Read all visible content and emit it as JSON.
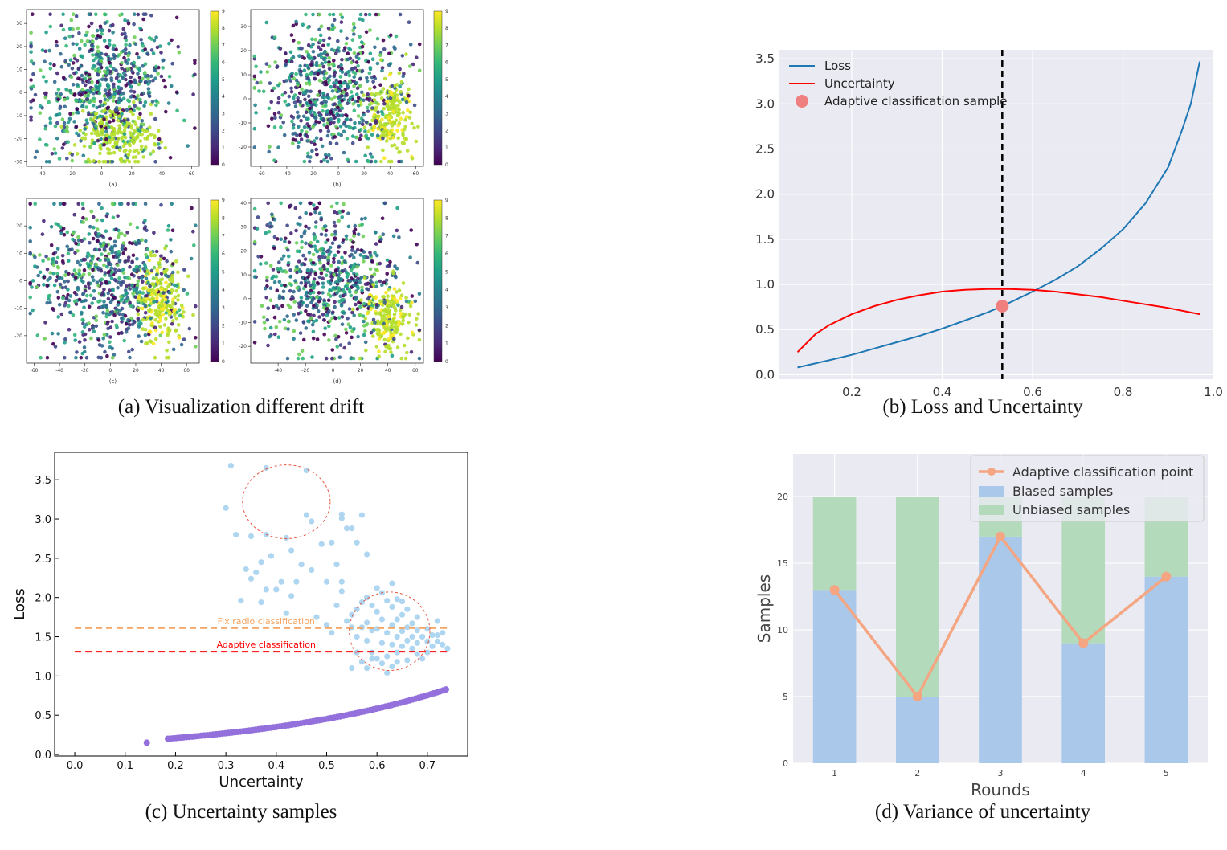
{
  "captions": {
    "a": "(a) Visualization different drift",
    "b": "(b) Loss and Uncertainty",
    "c": "(c) Uncertainty samples",
    "d": "(d) Variance of uncertainty"
  },
  "chart_data": [
    {
      "id": "a",
      "type": "scatter",
      "title": "(a) Visualization different drift",
      "subplots": [
        {
          "label": "(a)",
          "xticks": [
            -40,
            -20,
            0,
            20,
            40,
            60
          ],
          "yticks": [
            -30,
            -20,
            -10,
            0,
            10,
            20,
            30
          ],
          "xlim": [
            -50,
            65
          ],
          "ylim": [
            -32,
            36
          ]
        },
        {
          "label": "(b)",
          "xticks": [
            -60,
            -40,
            -20,
            0,
            20,
            40,
            60
          ],
          "yticks": [
            -20,
            -10,
            0,
            10,
            20,
            30
          ],
          "xlim": [
            -68,
            66
          ],
          "ylim": [
            -28,
            37
          ]
        },
        {
          "label": "(c)",
          "xticks": [
            -60,
            -40,
            -20,
            0,
            20,
            40,
            60
          ],
          "yticks": [
            -20,
            -10,
            0,
            10,
            20
          ],
          "xlim": [
            -66,
            70
          ],
          "ylim": [
            -30,
            30
          ]
        },
        {
          "label": "(d)",
          "xticks": [
            -40,
            -20,
            0,
            20,
            40,
            60
          ],
          "yticks": [
            -20,
            -10,
            0,
            10,
            20,
            30,
            40
          ],
          "xlim": [
            -60,
            66
          ],
          "ylim": [
            -27,
            42
          ]
        }
      ],
      "colorbar_ticks": [
        "0",
        "1",
        "2",
        "3",
        "4",
        "5",
        "6",
        "7",
        "8",
        "9"
      ]
    },
    {
      "id": "b",
      "type": "line",
      "title": "(b) Loss and Uncertainty",
      "xlim": [
        0.04,
        1.0
      ],
      "ylim": [
        -0.05,
        3.6
      ],
      "xticks": [
        "0.2",
        "0.4",
        "0.6",
        "0.8",
        "1.0"
      ],
      "yticks": [
        "0.0",
        "0.5",
        "1.0",
        "1.5",
        "2.0",
        "2.5",
        "3.0",
        "3.5"
      ],
      "series": [
        {
          "name": "Loss",
          "color": "#1f77b4",
          "x": [
            0.08,
            0.15,
            0.2,
            0.25,
            0.3,
            0.35,
            0.4,
            0.45,
            0.5,
            0.533,
            0.55,
            0.6,
            0.65,
            0.7,
            0.75,
            0.8,
            0.85,
            0.9,
            0.93,
            0.95,
            0.97
          ],
          "y": [
            0.08,
            0.16,
            0.22,
            0.29,
            0.36,
            0.43,
            0.51,
            0.6,
            0.69,
            0.76,
            0.8,
            0.92,
            1.05,
            1.2,
            1.39,
            1.61,
            1.9,
            2.3,
            2.7,
            3.0,
            3.47
          ]
        },
        {
          "name": "Uncertainty",
          "color": "#ff0000",
          "x": [
            0.08,
            0.12,
            0.15,
            0.2,
            0.25,
            0.3,
            0.35,
            0.4,
            0.45,
            0.5,
            0.55,
            0.6,
            0.65,
            0.7,
            0.75,
            0.8,
            0.85,
            0.9,
            0.97
          ],
          "y": [
            0.25,
            0.45,
            0.55,
            0.67,
            0.76,
            0.83,
            0.88,
            0.92,
            0.94,
            0.95,
            0.95,
            0.94,
            0.92,
            0.89,
            0.86,
            0.82,
            0.78,
            0.74,
            0.67
          ]
        }
      ],
      "marker": {
        "name": "Adaptive classification sample",
        "x": 0.533,
        "y": 0.76,
        "color": "#f08080"
      },
      "vline": {
        "x": 0.533,
        "style": "dashed",
        "color": "#000000"
      }
    },
    {
      "id": "c",
      "type": "scatter",
      "title": "(c) Uncertainty samples",
      "xlabel": "Uncertainty",
      "ylabel": "Loss",
      "xlim": [
        -0.04,
        0.78
      ],
      "ylim": [
        -0.02,
        3.85
      ],
      "xticks": [
        "0.0",
        "0.1",
        "0.2",
        "0.3",
        "0.4",
        "0.5",
        "0.6",
        "0.7"
      ],
      "yticks": [
        "0.0",
        "0.5",
        "1.0",
        "1.5",
        "2.0",
        "2.5",
        "3.0",
        "3.5"
      ],
      "hlines": [
        {
          "label": "Fix radio classification",
          "y": 1.61,
          "color": "#f4a460"
        },
        {
          "label": "Adaptive classification",
          "y": 1.31,
          "color": "#ff0000"
        }
      ],
      "curve_points_color": "#9370db",
      "scatter_color": "#aed6f1",
      "circles": [
        {
          "cx": 0.42,
          "cy": 3.22,
          "rx": 0.087,
          "ry": 0.47
        },
        {
          "cx": 0.625,
          "cy": 1.57,
          "rx": 0.08,
          "ry": 0.5
        }
      ],
      "scatter_points": [
        [
          0.31,
          3.68
        ],
        [
          0.3,
          3.14
        ],
        [
          0.32,
          2.8
        ],
        [
          0.35,
          2.78
        ],
        [
          0.38,
          3.65
        ],
        [
          0.38,
          2.8
        ],
        [
          0.42,
          2.76
        ],
        [
          0.46,
          3.62
        ],
        [
          0.46,
          3.05
        ],
        [
          0.47,
          2.97
        ],
        [
          0.53,
          3.06
        ],
        [
          0.53,
          3.01
        ],
        [
          0.54,
          2.88
        ],
        [
          0.55,
          2.88
        ],
        [
          0.57,
          3.05
        ],
        [
          0.58,
          2.55
        ],
        [
          0.56,
          2.7
        ],
        [
          0.34,
          2.36
        ],
        [
          0.35,
          2.24
        ],
        [
          0.38,
          2.1
        ],
        [
          0.37,
          2.45
        ],
        [
          0.39,
          2.53
        ],
        [
          0.41,
          2.2
        ],
        [
          0.4,
          2.1
        ],
        [
          0.43,
          2.6
        ],
        [
          0.44,
          2.2
        ],
        [
          0.45,
          2.42
        ],
        [
          0.47,
          2.35
        ],
        [
          0.49,
          2.68
        ],
        [
          0.5,
          2.2
        ],
        [
          0.51,
          2.7
        ],
        [
          0.52,
          2.42
        ],
        [
          0.53,
          2.2
        ],
        [
          0.33,
          1.96
        ],
        [
          0.36,
          2.32
        ],
        [
          0.37,
          1.94
        ],
        [
          0.42,
          1.8
        ],
        [
          0.43,
          2.02
        ],
        [
          0.48,
          1.75
        ],
        [
          0.5,
          1.65
        ],
        [
          0.51,
          1.55
        ],
        [
          0.52,
          1.9
        ],
        [
          0.53,
          2.08
        ],
        [
          0.54,
          1.7
        ],
        [
          0.55,
          1.78
        ],
        [
          0.56,
          1.5
        ],
        [
          0.56,
          1.3
        ],
        [
          0.57,
          1.62
        ],
        [
          0.57,
          1.94
        ],
        [
          0.58,
          1.68
        ],
        [
          0.58,
          1.45
        ],
        [
          0.59,
          1.9
        ],
        [
          0.59,
          1.3
        ],
        [
          0.6,
          1.82
        ],
        [
          0.6,
          1.6
        ],
        [
          0.6,
          1.22
        ],
        [
          0.61,
          2.06
        ],
        [
          0.61,
          1.72
        ],
        [
          0.61,
          1.42
        ],
        [
          0.62,
          1.96
        ],
        [
          0.62,
          1.55
        ],
        [
          0.62,
          1.25
        ],
        [
          0.63,
          1.88
        ],
        [
          0.63,
          1.65
        ],
        [
          0.63,
          1.4
        ],
        [
          0.63,
          1.12
        ],
        [
          0.64,
          1.98
        ],
        [
          0.64,
          1.72
        ],
        [
          0.64,
          1.5
        ],
        [
          0.64,
          1.3
        ],
        [
          0.65,
          1.78
        ],
        [
          0.65,
          1.57
        ],
        [
          0.65,
          1.38
        ],
        [
          0.66,
          1.85
        ],
        [
          0.66,
          1.62
        ],
        [
          0.66,
          1.45
        ],
        [
          0.67,
          1.67
        ],
        [
          0.67,
          1.5
        ],
        [
          0.67,
          1.35
        ],
        [
          0.68,
          1.58
        ],
        [
          0.68,
          1.42
        ],
        [
          0.69,
          1.5
        ],
        [
          0.7,
          1.44
        ],
        [
          0.71,
          1.38
        ],
        [
          0.72,
          1.7
        ],
        [
          0.72,
          1.52
        ],
        [
          0.72,
          1.44
        ],
        [
          0.73,
          1.4
        ],
        [
          0.74,
          1.35
        ],
        [
          0.55,
          1.1
        ],
        [
          0.57,
          1.18
        ],
        [
          0.58,
          1.1
        ],
        [
          0.59,
          1.22
        ],
        [
          0.61,
          1.16
        ],
        [
          0.62,
          1.04
        ],
        [
          0.63,
          2.18
        ],
        [
          0.6,
          2.12
        ],
        [
          0.58,
          2.0
        ],
        [
          0.56,
          1.85
        ],
        [
          0.55,
          1.62
        ],
        [
          0.59,
          1.58
        ],
        [
          0.65,
          1.95
        ],
        [
          0.68,
          1.75
        ],
        [
          0.7,
          1.6
        ],
        [
          0.71,
          1.52
        ],
        [
          0.73,
          1.55
        ],
        [
          0.64,
          1.18
        ],
        [
          0.66,
          1.2
        ],
        [
          0.68,
          1.28
        ],
        [
          0.69,
          1.22
        ],
        [
          0.7,
          1.3
        ]
      ]
    },
    {
      "id": "d",
      "type": "bar",
      "title": "(d) Variance of uncertainty",
      "xlabel": "Rounds",
      "ylabel": "Samples",
      "categories": [
        "1",
        "2",
        "3",
        "4",
        "5"
      ],
      "yticks": [
        "0",
        "5",
        "10",
        "15",
        "20"
      ],
      "ylim": [
        0,
        23.2
      ],
      "series": [
        {
          "name": "Biased samples",
          "values": [
            13,
            5,
            17,
            9,
            14
          ],
          "color": "#a9c8ea"
        },
        {
          "name": "Unbiased samples",
          "values": [
            7,
            15,
            3,
            11,
            6
          ],
          "color": "#b3dbbb"
        },
        {
          "name": "Adaptive classification point",
          "values": [
            13,
            5,
            17,
            9,
            14
          ],
          "color": "#f4a582",
          "type": "line"
        }
      ]
    }
  ]
}
